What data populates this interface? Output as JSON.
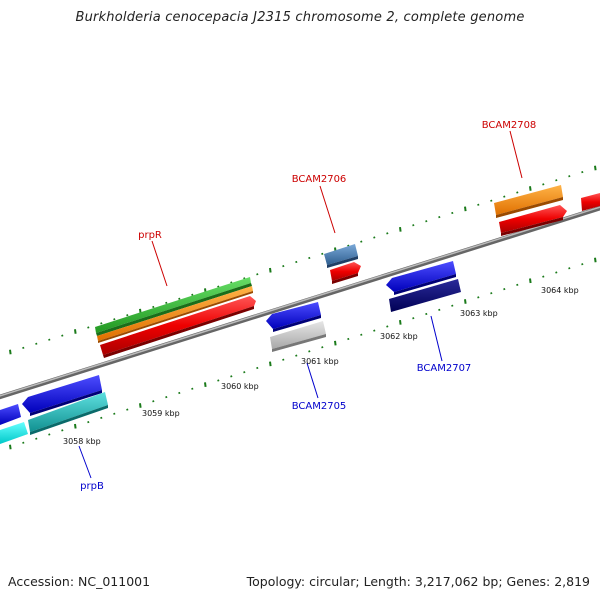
{
  "title": "Burkholderia cenocepacia J2315 chromosome 2, complete genome",
  "accession": "Accession: NC_011001",
  "summary": "Topology: circular; Length: 3,217,062 bp; Genes: 2,819",
  "scale_labels": [
    "3058 kbp",
    "3059 kbp",
    "3060 kbp",
    "3061 kbp",
    "3062 kbp",
    "3063 kbp",
    "3064 kbp"
  ],
  "gene_labels": {
    "prpR": "prpR",
    "BCAM2706": "BCAM2706",
    "BCAM2708": "BCAM2708",
    "BCAM2705": "BCAM2705",
    "BCAM2707": "BCAM2707",
    "prpB": "prpB"
  },
  "colors": {
    "forward_label": "#cc0000",
    "reverse_label": "#0000cc",
    "tick": "#1a7a1a",
    "backbone": "#8a8a8a"
  }
}
